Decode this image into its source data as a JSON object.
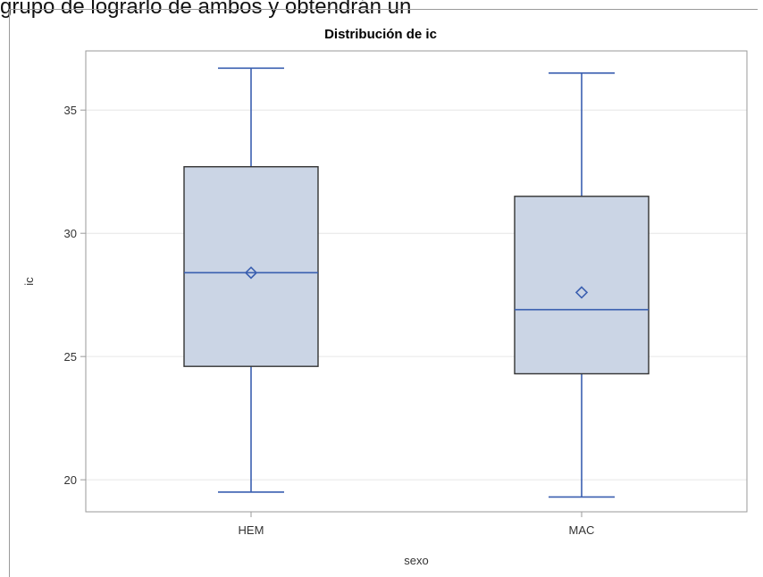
{
  "header": {
    "text": "grupo de lograrlo de ambos y obtendrán un"
  },
  "chart_data": {
    "type": "boxplot",
    "title": "Distribución de ic",
    "xlabel": "sexo",
    "ylabel": "ic",
    "categories": [
      "HEM",
      "MAC"
    ],
    "ylim": [
      18.7,
      37.4
    ],
    "yticks": [
      "20",
      "25",
      "30",
      "35"
    ],
    "grid": true,
    "boxes": [
      {
        "category": "HEM",
        "min": 19.5,
        "q1": 24.6,
        "median": 28.4,
        "q3": 32.7,
        "max": 36.7,
        "mean": 28.4
      },
      {
        "category": "MAC",
        "min": 19.3,
        "q1": 24.3,
        "median": 26.9,
        "q3": 31.5,
        "max": 36.5,
        "mean": 27.6
      }
    ],
    "colors": {
      "box_fill": "#cbd5e5",
      "box_border": "#333333",
      "whisker": "#3a5fb0",
      "median": "#3a5fb0",
      "mean_marker": "#3a5fb0",
      "grid": "#e6e6e6",
      "axis": "#9a9a9a"
    }
  }
}
